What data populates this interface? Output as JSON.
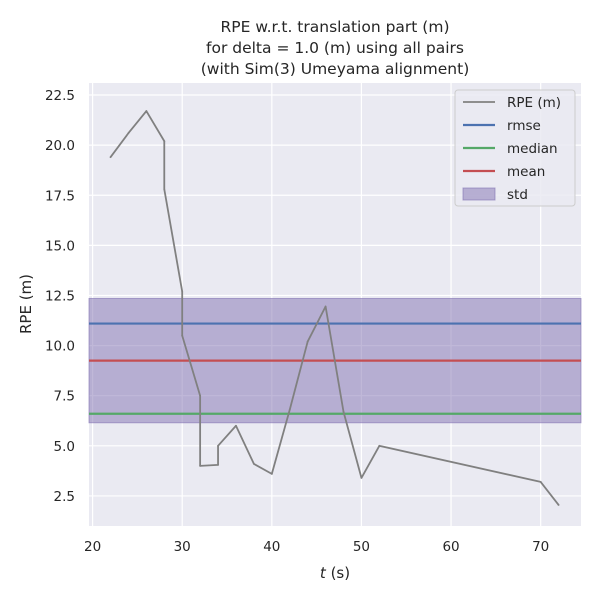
{
  "chart_data": {
    "type": "line",
    "title_lines": [
      "RPE w.r.t. translation part (m)",
      "for delta = 1.0 (m) using all pairs",
      "(with Sim(3) Umeyama alignment)"
    ],
    "xlabel_var": "t",
    "xlabel_unit": " (s)",
    "ylabel": "RPE (m)",
    "xlim": [
      19.6,
      74.5
    ],
    "ylim": [
      1.0,
      23.1
    ],
    "xticks": [
      20,
      30,
      40,
      50,
      60,
      70
    ],
    "yticks": [
      2.5,
      5.0,
      7.5,
      10.0,
      12.5,
      15.0,
      17.5,
      20.0,
      22.5
    ],
    "grid": true,
    "legend_position": "top-right",
    "series": [
      {
        "name": "RPE (m)",
        "color": "#808080",
        "x": [
          22,
          24,
          26,
          28,
          28,
          30,
          30,
          32,
          32,
          34,
          34,
          36,
          38,
          40,
          42,
          44,
          46,
          48,
          50,
          52,
          70,
          72
        ],
        "y": [
          19.4,
          20.6,
          21.7,
          20.2,
          17.8,
          12.7,
          10.5,
          7.5,
          4.0,
          4.05,
          5.0,
          6.0,
          4.1,
          3.6,
          6.8,
          10.2,
          11.95,
          6.7,
          3.4,
          5.0,
          3.2,
          2.05
        ]
      }
    ],
    "stats": {
      "rmse": {
        "name": "rmse",
        "value": 11.1,
        "color": "#4c72b0"
      },
      "median": {
        "name": "median",
        "value": 6.6,
        "color": "#55a868"
      },
      "mean": {
        "name": "mean",
        "value": 9.25,
        "color": "#c44e52"
      },
      "std": {
        "name": "std",
        "low": 6.15,
        "high": 12.35,
        "color": "#8172b2"
      }
    },
    "legend_order": [
      "RPE (m)",
      "rmse",
      "median",
      "mean",
      "std"
    ]
  }
}
